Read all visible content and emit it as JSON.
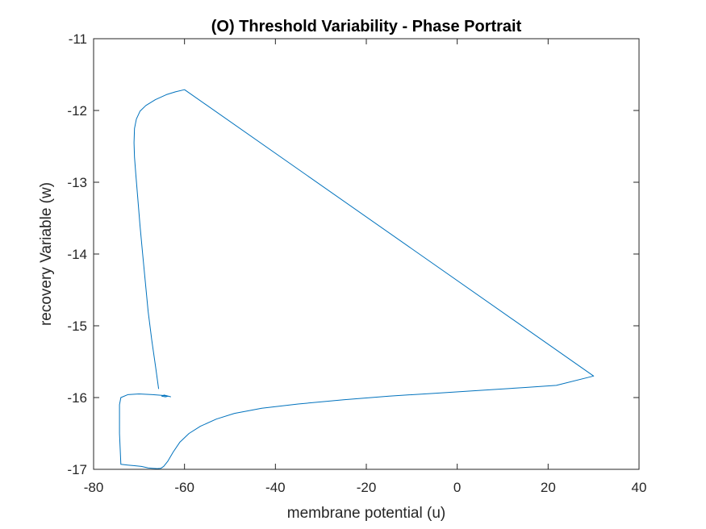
{
  "chart_data": {
    "type": "line",
    "title": "(O) Threshold Variability - Phase Portrait",
    "xlabel": "membrane potential (u)",
    "ylabel": "recovery Variable (w)",
    "xlim": [
      -80,
      40
    ],
    "ylim": [
      -17,
      -11
    ],
    "xticks": [
      "-80",
      "-60",
      "-40",
      "-20",
      "0",
      "20",
      "40"
    ],
    "yticks": [
      "-11",
      "-12",
      "-13",
      "-14",
      "-15",
      "-16",
      "-17"
    ],
    "grid": false,
    "line_color": "#0072BD",
    "series": [
      {
        "x": [
          -65.7,
          -66.3,
          -67.2,
          -68.0,
          -68.6,
          -69.2,
          -69.8,
          -70.3,
          -70.7,
          -71.0,
          -71.1,
          -71.0,
          -70.6,
          -69.8,
          -68.5,
          -66.4,
          -64.0,
          -62.0,
          -60.0,
          30.0,
          21.8,
          15.0,
          5.0,
          -5.0,
          -15.0,
          -25.0,
          -35.0,
          -43.0,
          -49.0,
          -53.0,
          -56.5,
          -59.0,
          -61.0,
          -62.5,
          -63.7,
          -64.6,
          -65.2,
          -66.0,
          -67.0,
          -68.0,
          -69.5,
          -71.0,
          -72.5,
          -74.0,
          -74.3,
          -74.3,
          -74.0,
          -72.5,
          -70.0,
          -67.0,
          -65.0,
          -63.5,
          -64.2,
          -65.0,
          -64.5,
          -63.0
        ],
        "y": [
          -15.88,
          -15.6,
          -15.2,
          -14.8,
          -14.4,
          -14.0,
          -13.6,
          -13.2,
          -12.9,
          -12.65,
          -12.45,
          -12.25,
          -12.12,
          -12.01,
          -11.93,
          -11.85,
          -11.78,
          -11.74,
          -11.71,
          -15.7,
          -15.83,
          -15.86,
          -15.9,
          -15.94,
          -15.98,
          -16.03,
          -16.09,
          -16.15,
          -16.22,
          -16.3,
          -16.4,
          -16.5,
          -16.62,
          -16.76,
          -16.89,
          -16.96,
          -16.985,
          -16.99,
          -16.985,
          -16.98,
          -16.96,
          -16.95,
          -16.94,
          -16.93,
          -16.5,
          -16.1,
          -16.0,
          -15.96,
          -15.95,
          -15.96,
          -15.97,
          -15.98,
          -15.99,
          -15.98,
          -15.965,
          -15.99
        ]
      }
    ]
  }
}
